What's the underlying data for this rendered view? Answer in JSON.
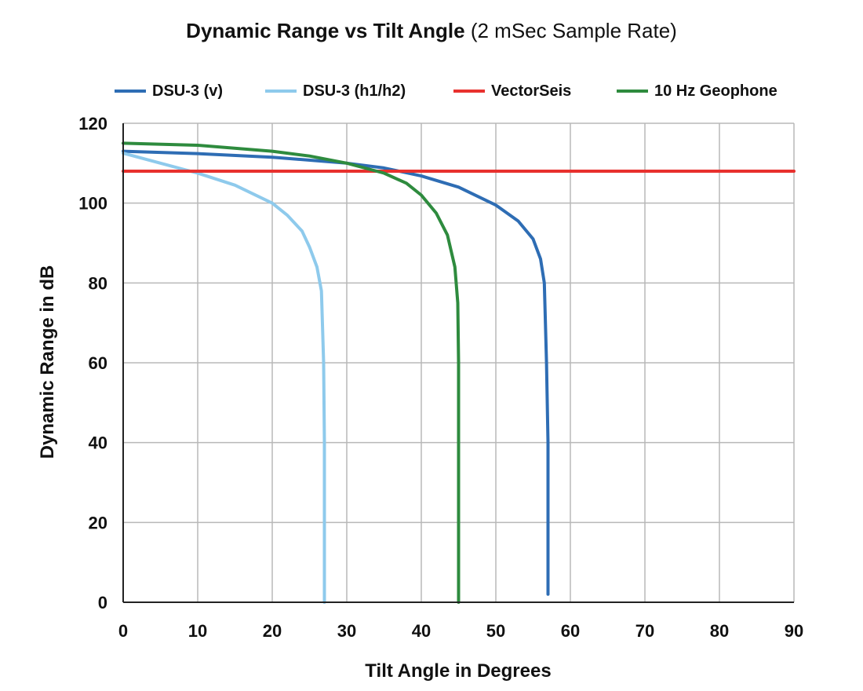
{
  "chart_data": {
    "type": "line",
    "title": "Dynamic Range vs Tilt Angle",
    "subtitle": "(2 mSec Sample Rate)",
    "xlabel": "Tilt Angle in Degrees",
    "ylabel": "Dynamic Range in dB",
    "xlim": [
      0,
      90
    ],
    "ylim": [
      0,
      120
    ],
    "x_ticks": [
      "0",
      "10",
      "20",
      "30",
      "40",
      "50",
      "60",
      "70",
      "80",
      "90"
    ],
    "y_ticks": [
      "0",
      "20",
      "40",
      "60",
      "80",
      "100",
      "120"
    ],
    "grid": true,
    "legend_position": "top",
    "series": [
      {
        "name": "DSU-3 (v)",
        "color": "#2e6db4",
        "points": [
          [
            0,
            113
          ],
          [
            10,
            112.4
          ],
          [
            20,
            111.5
          ],
          [
            30,
            110
          ],
          [
            35,
            108.8
          ],
          [
            40,
            106.8
          ],
          [
            45,
            104
          ],
          [
            50,
            99.5
          ],
          [
            53,
            95.5
          ],
          [
            55,
            91
          ],
          [
            56,
            86
          ],
          [
            56.5,
            80
          ],
          [
            56.8,
            60
          ],
          [
            57,
            40
          ],
          [
            57,
            20
          ],
          [
            57,
            2
          ]
        ]
      },
      {
        "name": "DSU-3 (h1/h2)",
        "color": "#8ecaec",
        "points": [
          [
            0,
            112.5
          ],
          [
            5,
            110
          ],
          [
            10,
            107.5
          ],
          [
            15,
            104.5
          ],
          [
            20,
            100
          ],
          [
            22,
            97
          ],
          [
            24,
            93
          ],
          [
            25,
            89
          ],
          [
            26,
            84
          ],
          [
            26.6,
            78
          ],
          [
            26.9,
            60
          ],
          [
            27,
            40
          ],
          [
            27,
            20
          ],
          [
            27,
            0
          ]
        ]
      },
      {
        "name": "VectorSeis",
        "color": "#e8312e",
        "points": [
          [
            0,
            108
          ],
          [
            90,
            108
          ]
        ]
      },
      {
        "name": "10 Hz Geophone",
        "color": "#2e8b3e",
        "points": [
          [
            0,
            115
          ],
          [
            10,
            114.5
          ],
          [
            20,
            113
          ],
          [
            25,
            111.8
          ],
          [
            30,
            110
          ],
          [
            35,
            107.5
          ],
          [
            38,
            105
          ],
          [
            40,
            102
          ],
          [
            42,
            97.5
          ],
          [
            43.5,
            92
          ],
          [
            44.5,
            84
          ],
          [
            44.9,
            75
          ],
          [
            45,
            60
          ],
          [
            45,
            40
          ],
          [
            45,
            20
          ],
          [
            45,
            0
          ]
        ]
      }
    ]
  }
}
